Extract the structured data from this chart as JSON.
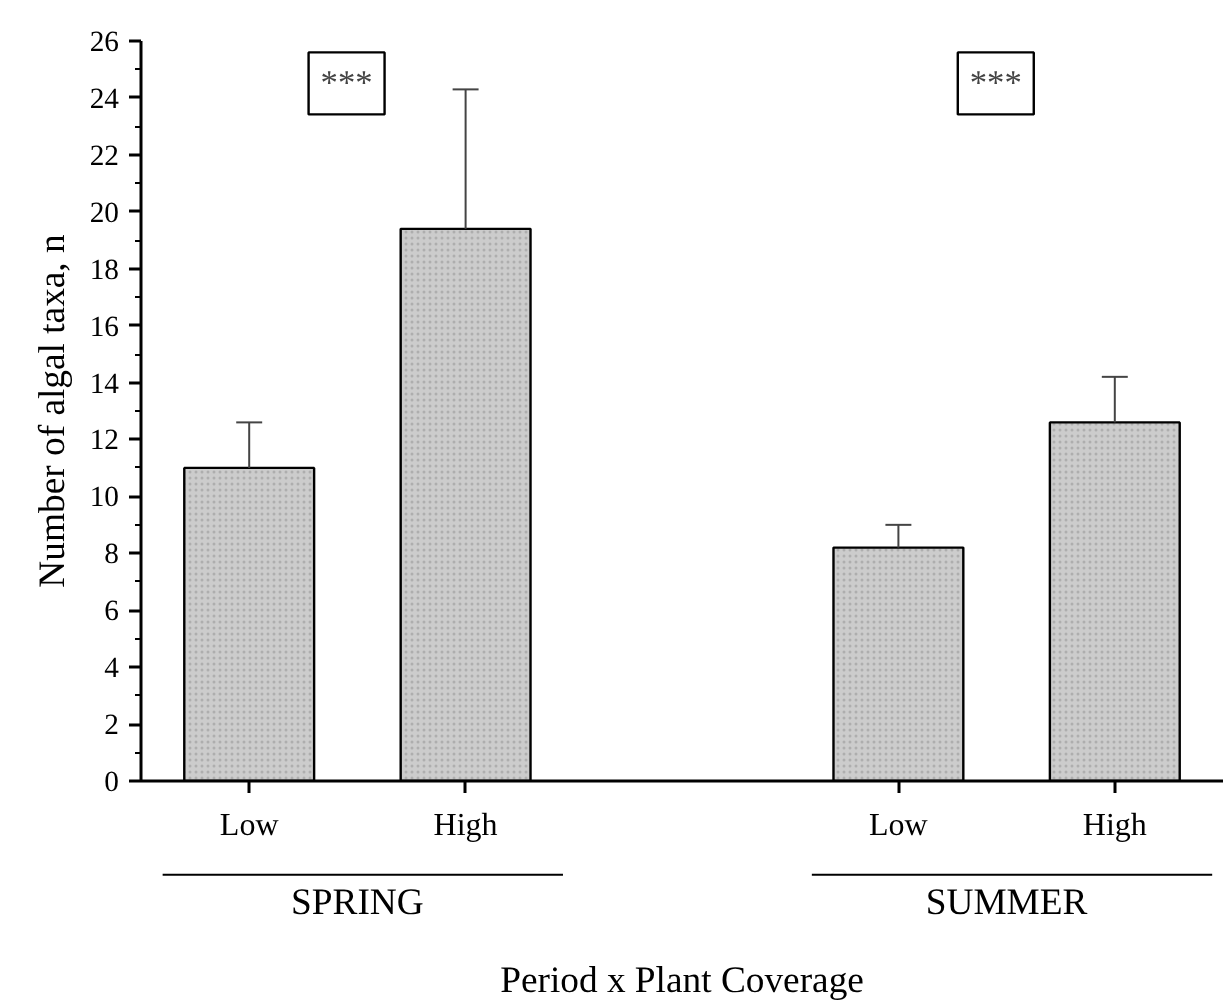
{
  "chart_data": {
    "type": "bar",
    "xlabel": "Period x Plant Coverage",
    "ylabel": "Number of algal taxa, n",
    "categories": [
      "Low",
      "High",
      null,
      "Low",
      "High"
    ],
    "values": [
      11.0,
      19.4,
      null,
      8.2,
      12.6
    ],
    "errors": [
      [
        11.0,
        12.6
      ],
      [
        19.4,
        24.3
      ],
      null,
      [
        8.2,
        9.0
      ],
      [
        12.6,
        14.2
      ]
    ],
    "color": "#cccccc",
    "ylim": [
      0,
      26
    ],
    "yticks": [
      0,
      {
        "value": 1,
        "label": null
      },
      2,
      {
        "value": 3,
        "label": null
      },
      4,
      {
        "value": 5,
        "label": null
      },
      6,
      {
        "value": 7,
        "label": null
      },
      8,
      {
        "value": 9,
        "label": null
      },
      10,
      {
        "value": 11,
        "label": null
      },
      12,
      {
        "value": 13,
        "label": null
      },
      14,
      {
        "value": 15,
        "label": null
      },
      16,
      {
        "value": 17,
        "label": null
      },
      18,
      {
        "value": 19,
        "label": null
      },
      20,
      {
        "value": 21,
        "label": null
      },
      22,
      {
        "value": 23,
        "label": null
      },
      24,
      {
        "value": 25,
        "label": null
      },
      26
    ],
    "annotations": [
      "***",
      "***",
      "SPRING",
      "SUMMER"
    ],
    "grid": false
  }
}
